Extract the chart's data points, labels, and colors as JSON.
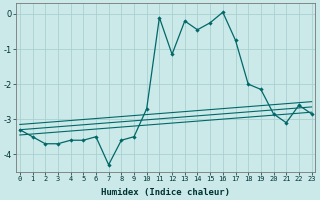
{
  "xlabel": "Humidex (Indice chaleur)",
  "background_color": "#cce9e9",
  "grid_color": "#aad0d0",
  "line_color": "#006868",
  "x_data": [
    0,
    1,
    2,
    3,
    4,
    5,
    6,
    7,
    8,
    9,
    10,
    11,
    12,
    13,
    14,
    15,
    16,
    17,
    18,
    19,
    20,
    21,
    22,
    23
  ],
  "y_data": [
    -3.3,
    -3.5,
    -3.7,
    -3.7,
    -3.6,
    -3.6,
    -3.5,
    -4.3,
    -3.6,
    -3.5,
    -2.7,
    -0.1,
    -1.15,
    -0.2,
    -0.45,
    -0.25,
    0.05,
    -0.75,
    -2.0,
    -2.15,
    -2.85,
    -3.1,
    -2.6,
    -2.85
  ],
  "trend_lines": [
    [
      -3.3,
      -2.65
    ],
    [
      -3.15,
      -2.5
    ],
    [
      -3.45,
      -2.8
    ]
  ],
  "xlim": [
    0,
    23
  ],
  "ylim": [
    -4.5,
    0.3
  ],
  "yticks": [
    0,
    -1,
    -2,
    -3,
    -4
  ],
  "xticks": [
    0,
    1,
    2,
    3,
    4,
    5,
    6,
    7,
    8,
    9,
    10,
    11,
    12,
    13,
    14,
    15,
    16,
    17,
    18,
    19,
    20,
    21,
    22,
    23
  ]
}
